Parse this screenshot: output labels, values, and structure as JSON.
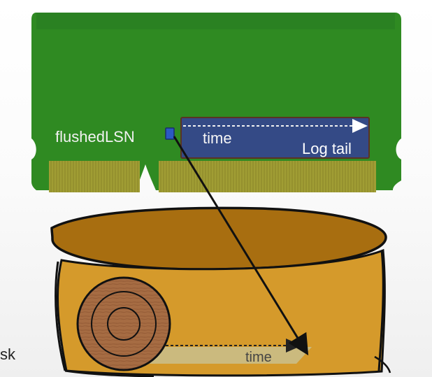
{
  "diagram": {
    "memory": {
      "flushed_lsn_label": "flushedLSN",
      "log_tail": {
        "time_label": "time",
        "title": "Log tail"
      }
    },
    "disk": {
      "side_label": "sk",
      "time_label": "time"
    }
  },
  "colors": {
    "memory_green": "#2f8a22",
    "memory_dark_green": "#25751b",
    "memory_pins": "#9e9a33",
    "log_blue": "#344a86",
    "marker_blue": "#2b59c3",
    "disk_fill": "#d59a2b",
    "disk_dark_fill": "#a86e10",
    "outline": "#111111",
    "wood": "#a36a3f"
  }
}
